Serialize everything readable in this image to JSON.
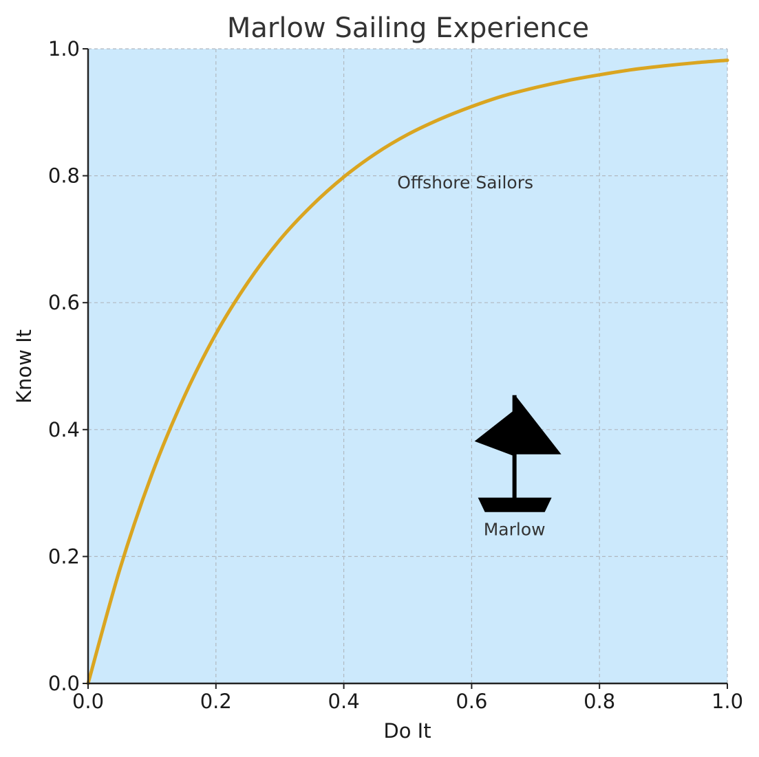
{
  "chart_data": {
    "type": "line",
    "title": "Marlow Sailing Experience",
    "xlabel": "Do It",
    "ylabel": "Know It",
    "xlim": [
      0,
      1
    ],
    "ylim": [
      0,
      1
    ],
    "xticks": [
      "0.0",
      "0.2",
      "0.4",
      "0.6",
      "0.8",
      "1.0"
    ],
    "yticks": [
      "0.0",
      "0.2",
      "0.4",
      "0.6",
      "0.8",
      "1.0"
    ],
    "grid": true,
    "series": [
      {
        "color": "#DAA520",
        "x": [
          0,
          0.05,
          0.1,
          0.15,
          0.2,
          0.25,
          0.3,
          0.35,
          0.4,
          0.45,
          0.5,
          0.55,
          0.6,
          0.65,
          0.7,
          0.75,
          0.8,
          0.85,
          0.9,
          0.95,
          1.0
        ],
        "y": [
          0,
          0.181,
          0.33,
          0.451,
          0.551,
          0.632,
          0.699,
          0.753,
          0.798,
          0.835,
          0.865,
          0.889,
          0.909,
          0.926,
          0.939,
          0.95,
          0.959,
          0.967,
          0.973,
          0.978,
          0.982
        ]
      }
    ],
    "annotations": [
      {
        "text": "Offshore Sailors",
        "x": 0.59,
        "y": 0.79
      },
      {
        "text": "Marlow",
        "x": 0.667,
        "y": 0.243
      }
    ],
    "marker": {
      "name": "sailboat-icon",
      "x": 0.667,
      "y": 0.36
    },
    "colors": {
      "plot_background": "#CCE9FC",
      "line": "#DAA520",
      "grid": "#B0B8C0",
      "axis": "#222222",
      "boat": "#000000"
    }
  }
}
